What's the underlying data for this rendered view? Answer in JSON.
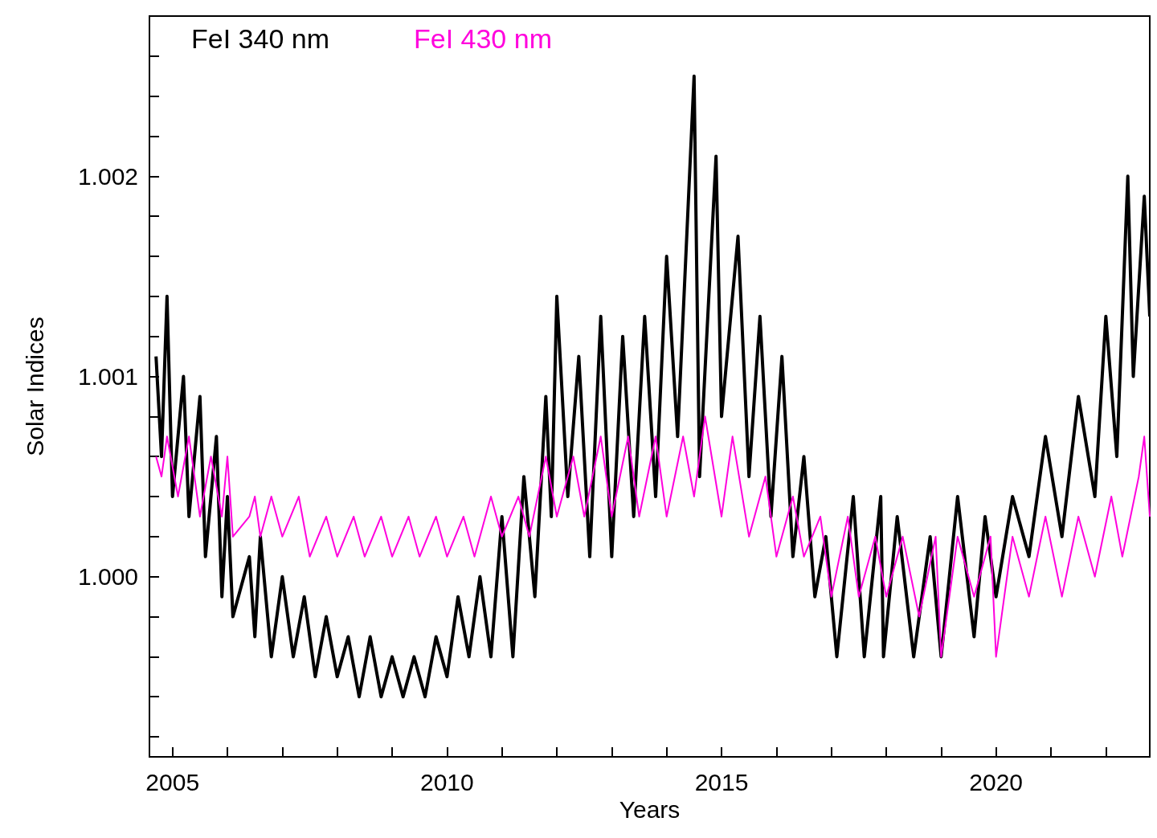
{
  "chart_data": {
    "type": "line",
    "xlabel": "Years",
    "ylabel": "Solar Indices",
    "legend": "top left",
    "grid": false,
    "marker": "none",
    "line_style": "solid",
    "xlim": [
      2004.58,
      2022.8
    ],
    "ylim": [
      0.9991,
      1.0028
    ],
    "xticks": [
      {
        "value": 2005,
        "label": "2005"
      },
      {
        "value": 2006,
        "label": null
      },
      {
        "value": 2007,
        "label": null
      },
      {
        "value": 2008,
        "label": null
      },
      {
        "value": 2009,
        "label": null
      },
      {
        "value": 2010,
        "label": "2010"
      },
      {
        "value": 2011,
        "label": null
      },
      {
        "value": 2012,
        "label": null
      },
      {
        "value": 2013,
        "label": null
      },
      {
        "value": 2014,
        "label": null
      },
      {
        "value": 2015,
        "label": "2015"
      },
      {
        "value": 2016,
        "label": null
      },
      {
        "value": 2017,
        "label": null
      },
      {
        "value": 2018,
        "label": null
      },
      {
        "value": 2019,
        "label": null
      },
      {
        "value": 2020,
        "label": "2020"
      },
      {
        "value": 2021,
        "label": null
      },
      {
        "value": 2022,
        "label": null
      }
    ],
    "yticks": [
      {
        "value": 0.9992,
        "label": null
      },
      {
        "value": 0.9994,
        "label": null
      },
      {
        "value": 0.9996,
        "label": null
      },
      {
        "value": 0.9998,
        "label": null
      },
      {
        "value": 1,
        "label": "1.000"
      },
      {
        "value": 1.0002,
        "label": null
      },
      {
        "value": 1.0004,
        "label": null
      },
      {
        "value": 1.0006,
        "label": null
      },
      {
        "value": 1.0008,
        "label": null
      },
      {
        "value": 1.001,
        "label": "1.001"
      },
      {
        "value": 1.0012,
        "label": null
      },
      {
        "value": 1.0014,
        "label": null
      },
      {
        "value": 1.0016,
        "label": null
      },
      {
        "value": 1.0018,
        "label": null
      },
      {
        "value": 1.002,
        "label": "1.002"
      },
      {
        "value": 1.0022,
        "label": null
      },
      {
        "value": 1.0024,
        "label": null
      },
      {
        "value": 1.0026,
        "label": null
      },
      {
        "value": 1.0028,
        "label": null
      }
    ],
    "series": [
      {
        "name": "FeI 340 nm",
        "color": "#000000",
        "x": [
          2004.7,
          2004.8,
          2004.9,
          2005.0,
          2005.2,
          2005.3,
          2005.5,
          2005.6,
          2005.8,
          2005.9,
          2006.0,
          2006.1,
          2006.4,
          2006.5,
          2006.6,
          2006.8,
          2007.0,
          2007.2,
          2007.4,
          2007.6,
          2007.8,
          2008.0,
          2008.2,
          2008.4,
          2008.6,
          2008.8,
          2009.0,
          2009.2,
          2009.4,
          2009.6,
          2009.8,
          2010.0,
          2010.2,
          2010.4,
          2010.6,
          2010.8,
          2011.0,
          2011.2,
          2011.4,
          2011.6,
          2011.8,
          2011.9,
          2012.0,
          2012.2,
          2012.4,
          2012.6,
          2012.8,
          2013.0,
          2013.2,
          2013.4,
          2013.6,
          2013.8,
          2014.0,
          2014.2,
          2014.5,
          2014.6,
          2014.9,
          2015.0,
          2015.3,
          2015.5,
          2015.7,
          2015.9,
          2016.1,
          2016.3,
          2016.5,
          2016.7,
          2016.9,
          2017.1,
          2017.4,
          2017.6,
          2017.9,
          2017.95,
          2018.2,
          2018.5,
          2018.8,
          2019.0,
          2019.3,
          2019.6,
          2019.8,
          2020.0,
          2020.3,
          2020.6,
          2020.9,
          2021.2,
          2021.5,
          2021.8,
          2022.0,
          2022.2,
          2022.4,
          2022.5,
          2022.7,
          2022.8
        ],
        "values": [
          1.0011,
          1.0006,
          1.0014,
          1.0004,
          1.001,
          1.0003,
          1.0009,
          1.0001,
          1.0007,
          0.9999,
          1.0004,
          0.9998,
          1.0001,
          0.9997,
          1.0002,
          0.9996,
          1.0,
          0.9996,
          0.9999,
          0.9995,
          0.9998,
          0.9995,
          0.9997,
          0.9994,
          0.9997,
          0.9994,
          0.9996,
          0.9994,
          0.9996,
          0.9994,
          0.9997,
          0.9995,
          0.9999,
          0.9996,
          1.0,
          0.9996,
          1.0003,
          0.9996,
          1.0005,
          0.9999,
          1.0009,
          1.0003,
          1.0014,
          1.0004,
          1.0011,
          1.0001,
          1.0013,
          1.0001,
          1.0012,
          1.0003,
          1.0013,
          1.0004,
          1.0016,
          1.0007,
          1.0025,
          1.0005,
          1.0021,
          1.0008,
          1.0017,
          1.0005,
          1.0013,
          1.0003,
          1.0011,
          1.0001,
          1.0006,
          0.9999,
          1.0002,
          0.9996,
          1.0004,
          0.9996,
          1.0004,
          0.9996,
          1.0003,
          0.9996,
          1.0002,
          0.9996,
          1.0004,
          0.9997,
          1.0003,
          0.9999,
          1.0004,
          1.0001,
          1.0007,
          1.0002,
          1.0009,
          1.0004,
          1.0013,
          1.0006,
          1.002,
          1.001,
          1.0019,
          1.0013
        ]
      },
      {
        "name": "FeI 430 nm",
        "color": "#ff00dd",
        "x": [
          2004.7,
          2004.8,
          2004.9,
          2005.1,
          2005.3,
          2005.5,
          2005.7,
          2005.9,
          2006.0,
          2006.1,
          2006.4,
          2006.5,
          2006.6,
          2006.8,
          2007.0,
          2007.3,
          2007.5,
          2007.8,
          2008.0,
          2008.3,
          2008.5,
          2008.8,
          2009.0,
          2009.3,
          2009.5,
          2009.8,
          2010.0,
          2010.3,
          2010.5,
          2010.8,
          2011.0,
          2011.3,
          2011.5,
          2011.8,
          2012.0,
          2012.3,
          2012.5,
          2012.8,
          2013.0,
          2013.3,
          2013.5,
          2013.8,
          2014.0,
          2014.3,
          2014.5,
          2014.7,
          2015.0,
          2015.2,
          2015.5,
          2015.8,
          2016.0,
          2016.3,
          2016.5,
          2016.8,
          2017.0,
          2017.3,
          2017.5,
          2017.8,
          2018.0,
          2018.3,
          2018.6,
          2018.9,
          2019.0,
          2019.3,
          2019.6,
          2019.9,
          2020.0,
          2020.3,
          2020.6,
          2020.9,
          2021.2,
          2021.5,
          2021.8,
          2022.1,
          2022.3,
          2022.6,
          2022.7,
          2022.8
        ],
        "values": [
          1.0006,
          1.0005,
          1.0007,
          1.0004,
          1.0007,
          1.0003,
          1.0006,
          1.0003,
          1.0006,
          1.0002,
          1.0003,
          1.0004,
          1.0002,
          1.0004,
          1.0002,
          1.0004,
          1.0001,
          1.0003,
          1.0001,
          1.0003,
          1.0001,
          1.0003,
          1.0001,
          1.0003,
          1.0001,
          1.0003,
          1.0001,
          1.0003,
          1.0001,
          1.0004,
          1.0002,
          1.0004,
          1.0002,
          1.0006,
          1.0003,
          1.0006,
          1.0003,
          1.0007,
          1.0003,
          1.0007,
          1.0003,
          1.0007,
          1.0003,
          1.0007,
          1.0004,
          1.0008,
          1.0003,
          1.0007,
          1.0002,
          1.0005,
          1.0001,
          1.0004,
          1.0001,
          1.0003,
          0.9999,
          1.0003,
          0.9999,
          1.0002,
          0.9999,
          1.0002,
          0.9998,
          1.0002,
          0.9996,
          1.0002,
          0.9999,
          1.0002,
          0.9996,
          1.0002,
          0.9999,
          1.0003,
          0.9999,
          1.0003,
          1.0,
          1.0004,
          1.0001,
          1.0005,
          1.0007,
          1.0003
        ]
      }
    ]
  }
}
